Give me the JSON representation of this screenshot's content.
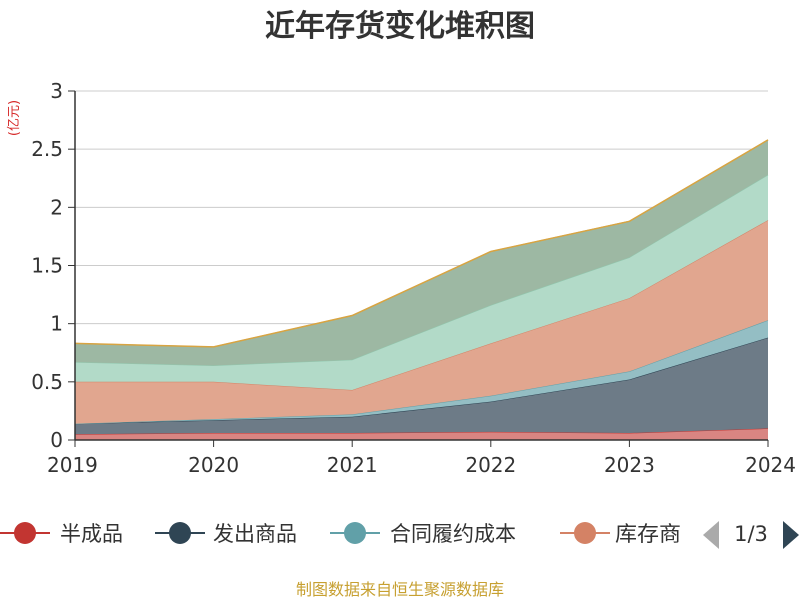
{
  "chart_data": {
    "type": "area",
    "stacked": true,
    "title": "近年存货变化堆积图",
    "ylabel": "(亿元)",
    "xlabel": "",
    "x": [
      "2019",
      "2020",
      "2021",
      "2022",
      "2023",
      "2024"
    ],
    "ylim": [
      0,
      3
    ],
    "yticks": [
      "0",
      "0.5",
      "1",
      "1.5",
      "2",
      "2.5",
      "3"
    ],
    "grid": true,
    "series": [
      {
        "name": "半成品",
        "color": "#c23531",
        "fill": "#d98582",
        "values": [
          0.05,
          0.06,
          0.06,
          0.07,
          0.06,
          0.1
        ]
      },
      {
        "name": "发出商品",
        "color": "#2f4554",
        "fill": "#6d7b87",
        "values": [
          0.09,
          0.11,
          0.14,
          0.26,
          0.46,
          0.78
        ]
      },
      {
        "name": "合同履约成本",
        "color": "#61a0a8",
        "fill": "#94bec4",
        "values": [
          0.0,
          0.01,
          0.02,
          0.05,
          0.07,
          0.15
        ]
      },
      {
        "name": "库存商品",
        "color": "#d48265",
        "fill": "#e1a68f",
        "values": [
          0.36,
          0.32,
          0.21,
          0.45,
          0.63,
          0.86
        ]
      },
      {
        "name": "",
        "color": "#91c7ae",
        "fill": "#b2dac8",
        "values": [
          0.17,
          0.14,
          0.26,
          0.33,
          0.35,
          0.39
        ]
      },
      {
        "name": "",
        "color": "#749f83",
        "fill": "#9db8a3",
        "values": [
          0.16,
          0.16,
          0.38,
          0.46,
          0.31,
          0.3
        ]
      }
    ]
  },
  "legend": {
    "items": [
      "半成品",
      "发出商品",
      "合同履约成本",
      "库存商"
    ],
    "page": "1/3"
  },
  "source": "制图数据来自恒生聚源数据库"
}
